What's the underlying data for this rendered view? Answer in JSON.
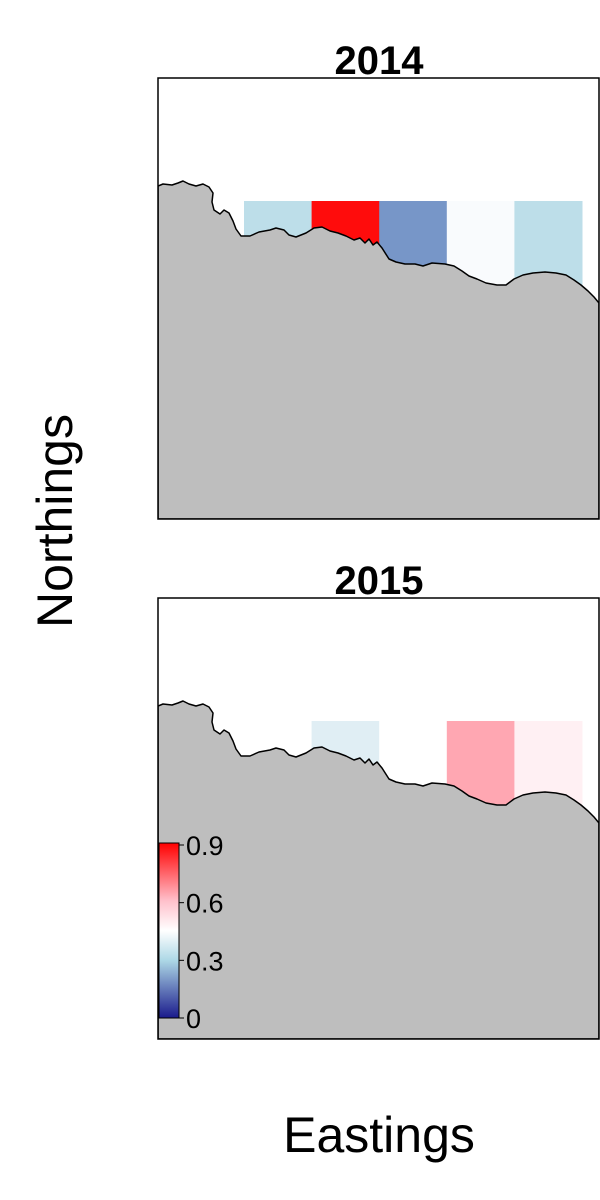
{
  "chart_data": {
    "type": "heatmap",
    "xlabel": "Eastings",
    "ylabel": "Northings",
    "colorbar": {
      "ticks": [
        "0",
        "0.3",
        "0.6",
        "0.9"
      ],
      "range": [
        0,
        0.9
      ],
      "colors": [
        "#1a1a8c",
        "#ffffff",
        "#ff0000"
      ]
    },
    "land_color": "#bebebe",
    "panels": [
      {
        "title": "2014",
        "cells": [
          {
            "col": 1,
            "color": "#bddee9"
          },
          {
            "col": 2,
            "color": "#ff0c0c"
          },
          {
            "col": 3,
            "color": "#7796c8"
          },
          {
            "col": 4,
            "color": "#f9fbfd"
          },
          {
            "col": 5,
            "color": "#bddee9"
          }
        ]
      },
      {
        "title": "2015",
        "cells": [
          {
            "col": 2,
            "color": "#e0eef4"
          },
          {
            "col": 3,
            "color": "#ffffff"
          },
          {
            "col": 4,
            "color": "#ffa7b2"
          },
          {
            "col": 5,
            "color": "#fff0f3"
          }
        ]
      }
    ]
  }
}
